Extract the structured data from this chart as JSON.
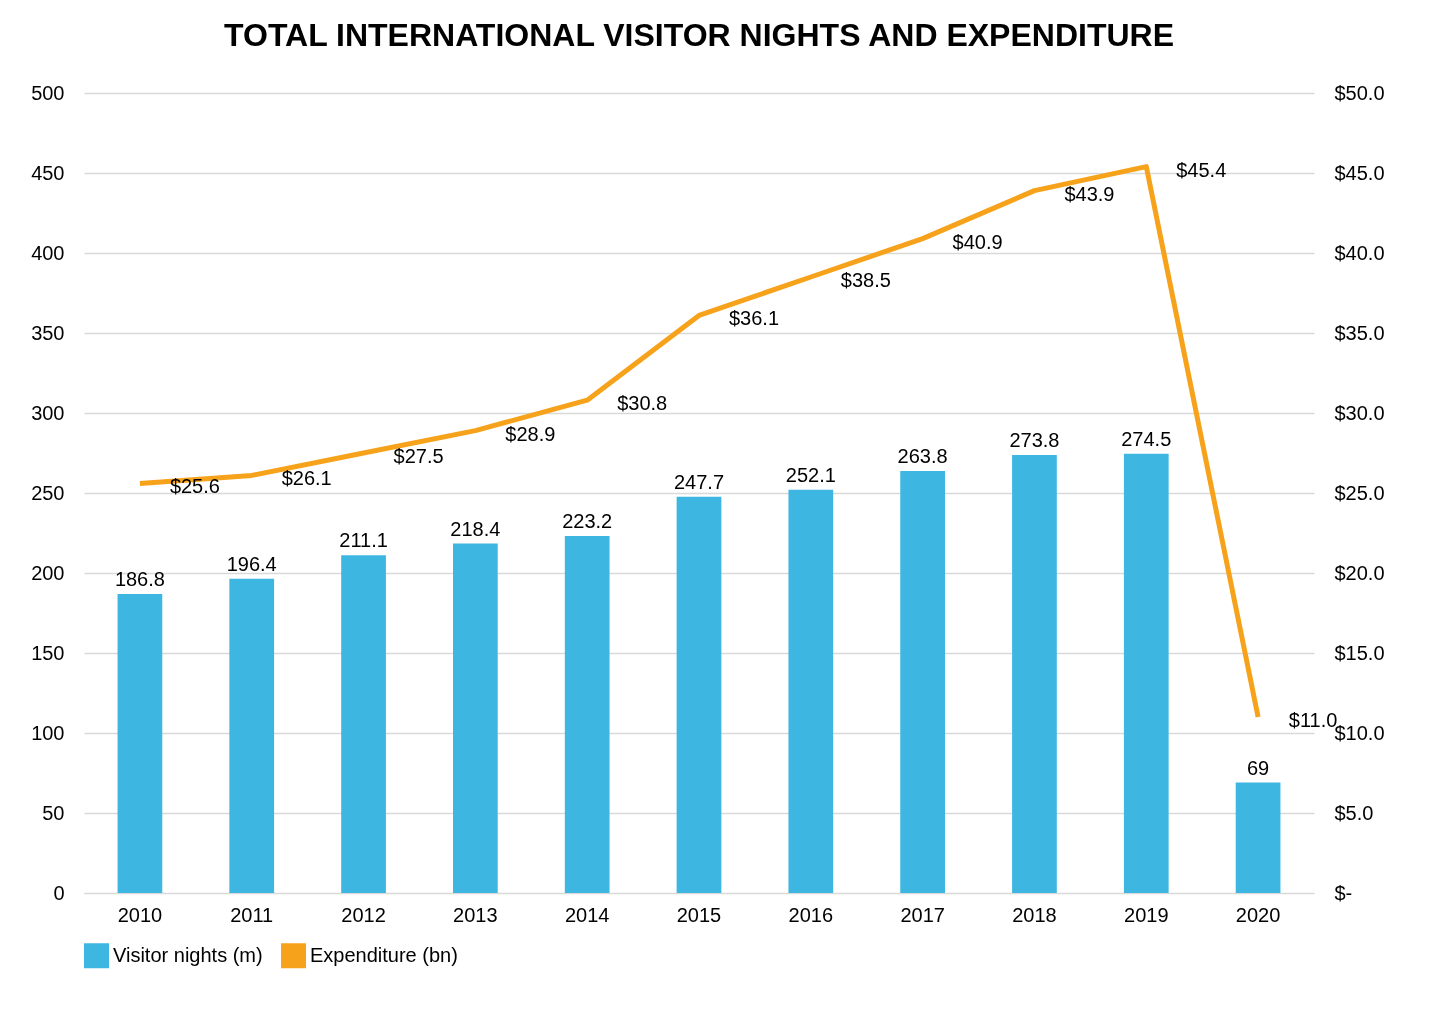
{
  "chart_data": {
    "type": "bar",
    "title": "TOTAL INTERNATIONAL VISITOR NIGHTS AND EXPENDITURE",
    "categories": [
      "2010",
      "2011",
      "2012",
      "2013",
      "2014",
      "2015",
      "2016",
      "2017",
      "2018",
      "2019",
      "2020"
    ],
    "series": [
      {
        "name": "Visitor nights (m)",
        "color": "#3db6e2",
        "values": [
          186.8,
          196.4,
          211.1,
          218.4,
          223.2,
          247.7,
          252.1,
          263.8,
          273.8,
          274.5,
          69
        ],
        "value_labels": [
          "186.8",
          "196.4",
          "211.1",
          "218.4",
          "223.2",
          "247.7",
          "252.1",
          "263.8",
          "273.8",
          "274.5",
          "69"
        ]
      },
      {
        "name": "Expenditure (bn)",
        "type": "line",
        "axis": "y2",
        "color": "#f7a21b",
        "values": [
          25.6,
          26.1,
          27.5,
          28.9,
          30.8,
          36.1,
          38.5,
          40.9,
          43.9,
          45.4,
          11.0
        ],
        "value_labels": [
          "$25.6",
          "$26.1",
          "$27.5",
          "$28.9",
          "$30.8",
          "$36.1",
          "$38.5",
          "$40.9",
          "$43.9",
          "$45.4",
          "$11.0"
        ]
      }
    ],
    "ylim": [
      0,
      500
    ],
    "yticks": [
      0,
      50,
      100,
      150,
      200,
      250,
      300,
      350,
      400,
      450,
      500
    ],
    "y2lim": [
      0,
      50
    ],
    "y2ticks": [
      {
        "value": 0,
        "label": "$-"
      },
      {
        "value": 5,
        "label": "$5.0"
      },
      {
        "value": 10,
        "label": "$10.0"
      },
      {
        "value": 15,
        "label": "$15.0"
      },
      {
        "value": 20,
        "label": "$20.0"
      },
      {
        "value": 25,
        "label": "$25.0"
      },
      {
        "value": 30,
        "label": "$30.0"
      },
      {
        "value": 35,
        "label": "$35.0"
      },
      {
        "value": 40,
        "label": "$40.0"
      },
      {
        "value": 45,
        "label": "$45.0"
      },
      {
        "value": 50,
        "label": "$50.0"
      }
    ],
    "grid": "y",
    "legend": "bottom",
    "line_style": "solid",
    "marker": "none"
  }
}
